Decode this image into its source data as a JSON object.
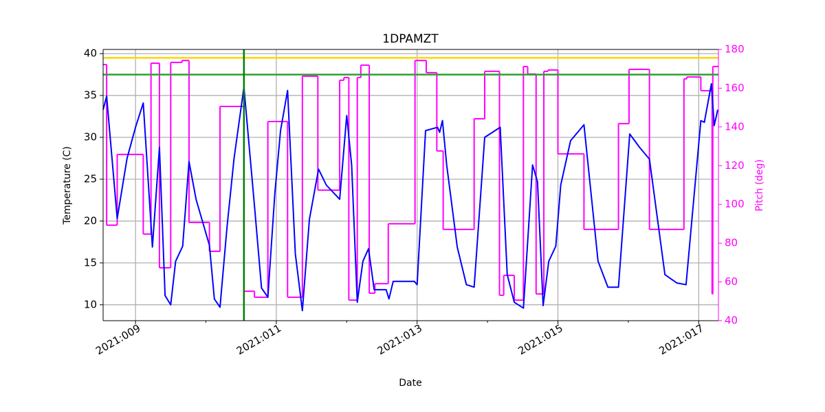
{
  "chart_data": {
    "type": "line",
    "title": "1DPAMZT",
    "x_label": "Date",
    "y_label": "Temperature (C)",
    "y2_label": "Pitch (deg)",
    "y2_color": "#ff00ff",
    "xlim": [
      8.54,
      17.28
    ],
    "xticks": [
      {
        "value": 9,
        "label": "2021:009"
      },
      {
        "value": 11,
        "label": "2021:011"
      },
      {
        "value": 13,
        "label": "2021:013"
      },
      {
        "value": 15,
        "label": "2021:015"
      },
      {
        "value": 17,
        "label": "2021:017"
      }
    ],
    "xminorticks": [
      10,
      12,
      14,
      16
    ],
    "ylim": [
      8.1,
      40.5
    ],
    "yticks": [
      10,
      15,
      20,
      25,
      30,
      35,
      40
    ],
    "y2lim": [
      40,
      180
    ],
    "y2ticks": [
      40,
      60,
      80,
      100,
      120,
      140,
      160,
      180
    ],
    "grid": true,
    "reference_lines": [
      {
        "axis": "y",
        "value": 39.5,
        "color": "#ffd700"
      },
      {
        "axis": "y",
        "value": 37.5,
        "color": "#2ca02c"
      },
      {
        "axis": "x",
        "value": 10.54,
        "color": "#008000"
      }
    ],
    "series": [
      {
        "name": "1DPAMZT",
        "color": "#0000ff",
        "axis": "y",
        "drawstyle": "default",
        "x": [
          8.54,
          8.59,
          8.74,
          8.88,
          9.0,
          9.11,
          9.24,
          9.34,
          9.42,
          9.5,
          9.57,
          9.67,
          9.76,
          9.86,
          10.05,
          10.12,
          10.2,
          10.3,
          10.4,
          10.54,
          10.69,
          10.79,
          10.88,
          10.98,
          11.06,
          11.16,
          11.27,
          11.37,
          11.47,
          11.6,
          11.71,
          11.9,
          12.0,
          12.07,
          12.15,
          12.23,
          12.31,
          12.39,
          12.56,
          12.6,
          12.66,
          12.96,
          13.0,
          13.12,
          13.29,
          13.32,
          13.36,
          13.42,
          13.57,
          13.7,
          13.81,
          13.96,
          14.18,
          14.28,
          14.38,
          14.51,
          14.64,
          14.71,
          14.79,
          14.87,
          14.97,
          15.04,
          15.18,
          15.37,
          15.57,
          15.71,
          15.86,
          16.02,
          16.16,
          16.3,
          16.52,
          16.69,
          16.82,
          17.03,
          17.08,
          17.18,
          17.22,
          17.27
        ],
        "values": [
          33.3,
          34.9,
          20.3,
          27.5,
          31.2,
          34.1,
          16.9,
          28.8,
          11.1,
          10.0,
          15.2,
          17.0,
          27.1,
          22.6,
          17.1,
          10.7,
          9.7,
          19.3,
          27.5,
          36.0,
          21.8,
          12.0,
          10.9,
          23.4,
          30.8,
          35.6,
          16.1,
          9.3,
          20.2,
          26.2,
          24.3,
          22.6,
          32.6,
          26.7,
          10.3,
          15.2,
          16.7,
          11.8,
          11.8,
          10.7,
          12.8,
          12.8,
          12.4,
          30.8,
          31.2,
          30.6,
          32.0,
          26.7,
          16.9,
          12.4,
          12.1,
          30.0,
          31.2,
          13.6,
          10.3,
          9.6,
          26.7,
          24.7,
          9.9,
          15.2,
          17.0,
          24.3,
          29.6,
          31.5,
          15.2,
          12.1,
          12.1,
          30.4,
          28.8,
          27.4,
          13.6,
          12.6,
          12.4,
          32.0,
          31.8,
          36.4,
          31.4,
          33.3
        ]
      },
      {
        "name": "Pitch",
        "color": "#ff00ff",
        "axis": "y2",
        "drawstyle": "steps-post",
        "x": [
          8.54,
          8.59,
          8.74,
          9.11,
          9.22,
          9.34,
          9.5,
          9.66,
          9.76,
          10.05,
          10.2,
          10.54,
          10.69,
          10.88,
          11.16,
          11.37,
          11.59,
          11.9,
          11.96,
          12.03,
          12.15,
          12.2,
          12.32,
          12.4,
          12.59,
          12.97,
          13.13,
          13.28,
          13.37,
          13.81,
          13.96,
          14.17,
          14.23,
          14.38,
          14.51,
          14.57,
          14.69,
          14.8,
          14.86,
          15.0,
          15.37,
          15.86,
          16.01,
          16.3,
          16.79,
          16.83,
          17.03,
          17.19,
          17.2,
          17.27
        ],
        "values": [
          172.2,
          89.3,
          125.8,
          84.7,
          172.9,
          67.3,
          173.3,
          174.3,
          90.7,
          75.8,
          150.6,
          55.2,
          52.1,
          142.8,
          52.1,
          166.2,
          107.4,
          164.1,
          165.5,
          50.6,
          165.5,
          171.9,
          54.2,
          59.1,
          90.0,
          174.3,
          168.0,
          127.6,
          87.1,
          144.2,
          168.7,
          53.1,
          63.4,
          50.6,
          171.2,
          167.3,
          53.8,
          168.7,
          169.4,
          126.1,
          87.1,
          141.7,
          169.7,
          87.1,
          164.8,
          165.8,
          158.7,
          53.8,
          171.2,
          171.2
        ]
      }
    ]
  }
}
